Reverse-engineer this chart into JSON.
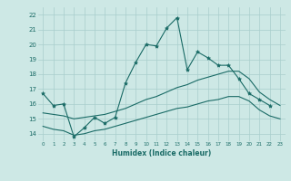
{
  "xlabel": "Humidex (Indice chaleur)",
  "ylabel": "",
  "bg_color": "#cde8e5",
  "grid_color": "#a8cecc",
  "line_color": "#1a6b66",
  "xmin": -0.5,
  "xmax": 23.5,
  "ymin": 13.5,
  "ymax": 22.5,
  "yticks": [
    14,
    15,
    16,
    17,
    18,
    19,
    20,
    21,
    22
  ],
  "xticks": [
    0,
    1,
    2,
    3,
    4,
    5,
    6,
    7,
    8,
    9,
    10,
    11,
    12,
    13,
    14,
    15,
    16,
    17,
    18,
    19,
    20,
    21,
    22,
    23
  ],
  "series1_x": [
    0,
    1,
    2,
    3,
    4,
    5,
    6,
    7,
    8,
    9,
    10,
    11,
    12,
    13,
    14,
    15,
    16,
    17,
    18,
    19,
    20,
    21,
    22
  ],
  "series1_y": [
    16.7,
    15.9,
    16.0,
    13.8,
    14.4,
    15.1,
    14.7,
    15.1,
    17.4,
    18.8,
    20.0,
    19.9,
    21.1,
    21.8,
    18.3,
    19.5,
    19.1,
    18.6,
    18.6,
    17.7,
    16.7,
    16.3,
    15.9
  ],
  "series2_x": [
    0,
    1,
    2,
    3,
    4,
    5,
    6,
    7,
    8,
    9,
    10,
    11,
    12,
    13,
    14,
    15,
    16,
    17,
    18,
    19,
    20,
    21,
    22,
    23
  ],
  "series2_y": [
    15.4,
    15.3,
    15.2,
    15.0,
    15.1,
    15.2,
    15.3,
    15.5,
    15.7,
    16.0,
    16.3,
    16.5,
    16.8,
    17.1,
    17.3,
    17.6,
    17.8,
    18.0,
    18.2,
    18.2,
    17.7,
    16.8,
    16.3,
    15.9
  ],
  "series3_x": [
    0,
    1,
    2,
    3,
    4,
    5,
    6,
    7,
    8,
    9,
    10,
    11,
    12,
    13,
    14,
    15,
    16,
    17,
    18,
    19,
    20,
    21,
    22,
    23
  ],
  "series3_y": [
    14.5,
    14.3,
    14.2,
    13.9,
    14.0,
    14.2,
    14.3,
    14.5,
    14.7,
    14.9,
    15.1,
    15.3,
    15.5,
    15.7,
    15.8,
    16.0,
    16.2,
    16.3,
    16.5,
    16.5,
    16.2,
    15.6,
    15.2,
    15.0
  ]
}
